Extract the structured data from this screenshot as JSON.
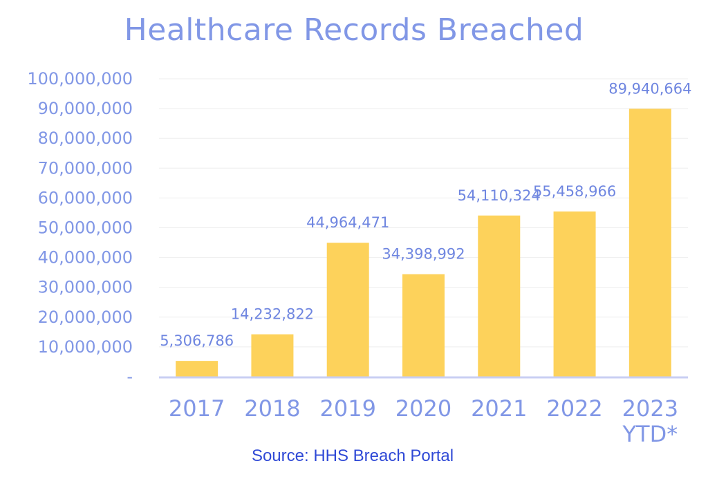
{
  "chart_data": {
    "type": "bar",
    "title": "Healthcare Records Breached",
    "xlabel": "",
    "ylabel": "",
    "categories": [
      "2017",
      "2018",
      "2019",
      "2020",
      "2021",
      "2022",
      "2023 YTD*"
    ],
    "values": [
      5306786,
      14232822,
      44964471,
      34398992,
      54110324,
      55458966,
      89940664
    ],
    "data_labels": [
      "5,306,786",
      "14,232,822",
      "44,964,471",
      "34,398,992",
      "54,110,324",
      "55,458,966",
      "89,940,664"
    ],
    "ylim": [
      0,
      100000000
    ],
    "yticks": [
      {
        "value": 0,
        "label": "-"
      },
      {
        "value": 10000000,
        "label": "10,000,000"
      },
      {
        "value": 20000000,
        "label": "20,000,000"
      },
      {
        "value": 30000000,
        "label": "30,000,000"
      },
      {
        "value": 40000000,
        "label": "40,000,000"
      },
      {
        "value": 50000000,
        "label": "50,000,000"
      },
      {
        "value": 60000000,
        "label": "60,000,000"
      },
      {
        "value": 70000000,
        "label": "70,000,000"
      },
      {
        "value": 80000000,
        "label": "80,000,000"
      },
      {
        "value": 90000000,
        "label": "90,000,000"
      },
      {
        "value": 100000000,
        "label": "100,000,000"
      }
    ],
    "grid": true,
    "legend": "none",
    "colors": {
      "bar": "#fdd25b",
      "text": "#8197e6",
      "axis": "#c9cff3",
      "grid": "#eeeeee"
    },
    "source": "Source: HHS Breach Portal"
  }
}
